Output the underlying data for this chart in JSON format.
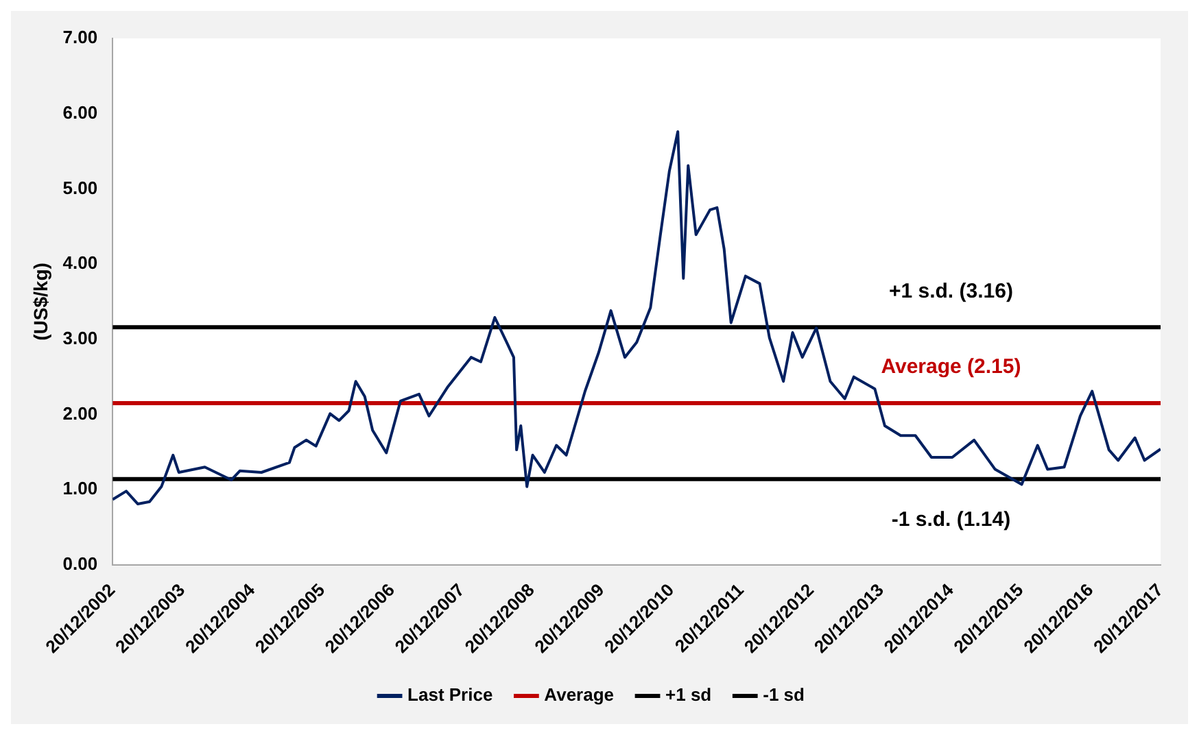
{
  "chart_data": {
    "type": "line",
    "ylabel": "(US$/kg)",
    "ylim": [
      0,
      7
    ],
    "yticks": [
      {
        "value": 0,
        "label": "0.00"
      },
      {
        "value": 1,
        "label": "1.00"
      },
      {
        "value": 2,
        "label": "2.00"
      },
      {
        "value": 3,
        "label": "3.00"
      },
      {
        "value": 4,
        "label": "4.00"
      },
      {
        "value": 5,
        "label": "5.00"
      },
      {
        "value": 6,
        "label": "6.00"
      },
      {
        "value": 7,
        "label": "7.00"
      }
    ],
    "xlim": [
      "2002-12-20",
      "2017-12-20"
    ],
    "xticks": [
      {
        "value": "2002-12-20",
        "label": "20/12/2002"
      },
      {
        "value": "2003-12-20",
        "label": "20/12/2003"
      },
      {
        "value": "2004-12-20",
        "label": "20/12/2004"
      },
      {
        "value": "2005-12-20",
        "label": "20/12/2005"
      },
      {
        "value": "2006-12-20",
        "label": "20/12/2006"
      },
      {
        "value": "2007-12-20",
        "label": "20/12/2007"
      },
      {
        "value": "2008-12-20",
        "label": "20/12/2008"
      },
      {
        "value": "2009-12-20",
        "label": "20/12/2009"
      },
      {
        "value": "2010-12-20",
        "label": "20/12/2010"
      },
      {
        "value": "2011-12-20",
        "label": "20/12/2011"
      },
      {
        "value": "2012-12-20",
        "label": "20/12/2012"
      },
      {
        "value": "2013-12-20",
        "label": "20/12/2013"
      },
      {
        "value": "2014-12-20",
        "label": "20/12/2014"
      },
      {
        "value": "2015-12-20",
        "label": "20/12/2015"
      },
      {
        "value": "2016-12-20",
        "label": "20/12/2016"
      },
      {
        "value": "2017-12-20",
        "label": "20/12/2017"
      }
    ],
    "grid": false,
    "legend": "bottom",
    "marker": "none",
    "line_style": "solid",
    "series": [
      {
        "name": "Last Price",
        "color": "#002060",
        "x": [
          "2002-12-20",
          "2003-03-01",
          "2003-05-01",
          "2003-07-01",
          "2003-09-01",
          "2003-11-01",
          "2003-12-01",
          "2004-04-15",
          "2004-09-01",
          "2004-10-15",
          "2005-02-05",
          "2005-07-01",
          "2005-07-28",
          "2005-09-27",
          "2005-11-17",
          "2006-01-30",
          "2006-03-18",
          "2006-05-08",
          "2006-06-13",
          "2006-07-30",
          "2006-09-09",
          "2006-11-20",
          "2007-02-02",
          "2007-05-10",
          "2007-07-01",
          "2007-10-08",
          "2008-02-06",
          "2008-03-28",
          "2008-06-09",
          "2008-08-10",
          "2008-09-16",
          "2008-10-01",
          "2008-10-23",
          "2008-11-24",
          "2008-12-24",
          "2009-02-24",
          "2009-04-27",
          "2009-06-18",
          "2009-09-24",
          "2009-12-05",
          "2010-02-06",
          "2010-04-20",
          "2010-06-21",
          "2010-09-01",
          "2010-10-23",
          "2010-12-09",
          "2011-01-22",
          "2011-02-20",
          "2011-03-17",
          "2011-04-27",
          "2011-07-09",
          "2011-08-15",
          "2011-09-21",
          "2011-10-27",
          "2012-01-11",
          "2012-03-25",
          "2012-05-15",
          "2012-07-27",
          "2012-09-13",
          "2012-11-03",
          "2013-01-15",
          "2013-03-29",
          "2013-06-13",
          "2013-07-30",
          "2013-11-17",
          "2014-01-08",
          "2014-04-01",
          "2014-06-17",
          "2014-09-09",
          "2014-12-27",
          "2015-04-20",
          "2015-08-08",
          "2015-12-25",
          "2016-03-17",
          "2016-05-08",
          "2016-08-03",
          "2016-10-26",
          "2016-12-27",
          "2017-03-25",
          "2017-05-12",
          "2017-08-08",
          "2017-09-27",
          "2017-12-20"
        ],
        "values": [
          0.87,
          0.98,
          0.81,
          0.84,
          1.04,
          1.46,
          1.23,
          1.3,
          1.13,
          1.25,
          1.23,
          1.36,
          1.56,
          1.66,
          1.58,
          2.01,
          1.92,
          2.05,
          2.44,
          2.24,
          1.79,
          1.49,
          2.18,
          2.27,
          1.98,
          2.37,
          2.76,
          2.7,
          3.29,
          2.96,
          2.76,
          1.53,
          1.85,
          1.04,
          1.46,
          1.23,
          1.59,
          1.46,
          2.31,
          2.83,
          3.38,
          2.76,
          2.96,
          3.42,
          4.39,
          5.24,
          5.76,
          3.81,
          5.31,
          4.39,
          4.72,
          4.75,
          4.2,
          3.22,
          3.84,
          3.74,
          3.02,
          2.44,
          3.09,
          2.76,
          3.15,
          2.44,
          2.21,
          2.5,
          2.34,
          1.85,
          1.72,
          1.72,
          1.43,
          1.43,
          1.66,
          1.27,
          1.07,
          1.59,
          1.27,
          1.3,
          1.98,
          2.31,
          1.53,
          1.39,
          1.69,
          1.39,
          1.54
        ]
      },
      {
        "name": "Average",
        "color": "#c00000",
        "x": [
          "2002-12-20",
          "2017-12-20"
        ],
        "values": [
          2.15,
          2.15
        ]
      },
      {
        "name": "+1 sd",
        "color": "#000000",
        "x": [
          "2002-12-20",
          "2017-12-20"
        ],
        "values": [
          3.16,
          3.16
        ]
      },
      {
        "name": "-1 sd",
        "color": "#000000",
        "x": [
          "2002-12-20",
          "2017-12-20"
        ],
        "values": [
          1.14,
          1.14
        ]
      }
    ],
    "annotations": [
      "Average (2.15)",
      "+1 s.d. (3.16)",
      "-1 s.d. (1.14)"
    ]
  }
}
